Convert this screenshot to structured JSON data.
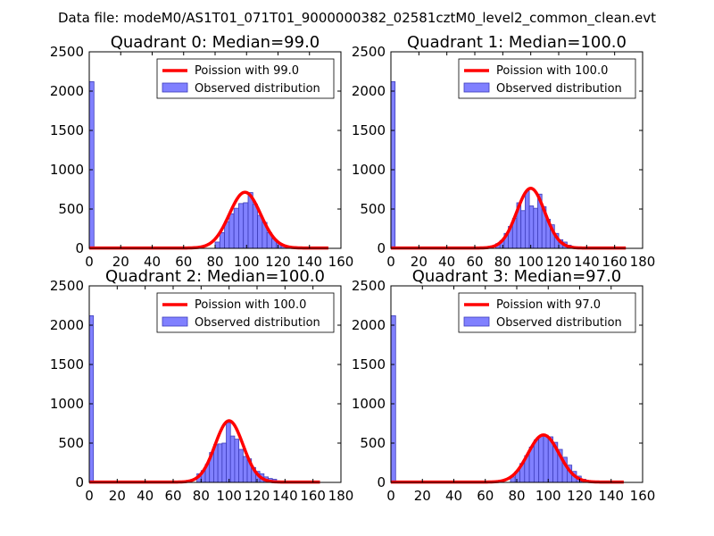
{
  "suptitle": "Data file: modeM0/AS1T01_071T01_9000000382_02581cztM0_level2_common_clean.evt",
  "colors": {
    "poisson_line": "#ff0000",
    "histogram_fill": "#8080ff",
    "histogram_edge": "#3d3dbb",
    "axes": "#000000",
    "legend_edge": "#000000"
  },
  "chart_data": [
    {
      "type": "bar",
      "title": "Quadrant 0: Median=99.0",
      "xlim": [
        0,
        160
      ],
      "ylim": [
        0,
        2500
      ],
      "xticks": [
        0,
        20,
        40,
        60,
        80,
        100,
        120,
        140,
        160
      ],
      "yticks": [
        0,
        500,
        1000,
        1500,
        2000,
        2500
      ],
      "legend_position": "top-right",
      "series": [
        {
          "name": "Poission with 99.0",
          "kind": "line",
          "mean": 99.0,
          "x_range": [
            0,
            152
          ],
          "peak": 710
        },
        {
          "name": "Observed distribution",
          "kind": "histogram",
          "bins": [
            {
              "x0": 0,
              "x1": 3,
              "count": 2120
            },
            {
              "x0": 80,
              "x1": 83,
              "count": 80
            },
            {
              "x0": 83,
              "x1": 86,
              "count": 200
            },
            {
              "x0": 86,
              "x1": 89,
              "count": 340
            },
            {
              "x0": 89,
              "x1": 92,
              "count": 440
            },
            {
              "x0": 92,
              "x1": 95,
              "count": 510
            },
            {
              "x0": 95,
              "x1": 98,
              "count": 570
            },
            {
              "x0": 98,
              "x1": 101,
              "count": 580
            },
            {
              "x0": 101,
              "x1": 104,
              "count": 710
            },
            {
              "x0": 104,
              "x1": 107,
              "count": 560
            },
            {
              "x0": 107,
              "x1": 110,
              "count": 420
            },
            {
              "x0": 110,
              "x1": 113,
              "count": 330
            },
            {
              "x0": 113,
              "x1": 116,
              "count": 200
            },
            {
              "x0": 116,
              "x1": 119,
              "count": 120
            },
            {
              "x0": 119,
              "x1": 122,
              "count": 70
            },
            {
              "x0": 122,
              "x1": 125,
              "count": 30
            }
          ]
        }
      ]
    },
    {
      "type": "bar",
      "title": "Quadrant 1: Median=100.0",
      "xlim": [
        0,
        180
      ],
      "ylim": [
        0,
        2500
      ],
      "xticks": [
        0,
        20,
        40,
        60,
        80,
        100,
        120,
        140,
        160,
        180
      ],
      "yticks": [
        0,
        500,
        1000,
        1500,
        2000,
        2500
      ],
      "legend_position": "top-right",
      "series": [
        {
          "name": "Poission with 100.0",
          "kind": "line",
          "mean": 100.0,
          "x_range": [
            0,
            168
          ],
          "peak": 760
        },
        {
          "name": "Observed distribution",
          "kind": "histogram",
          "bins": [
            {
              "x0": 0,
              "x1": 3,
              "count": 2120
            },
            {
              "x0": 75,
              "x1": 78,
              "count": 60
            },
            {
              "x0": 78,
              "x1": 81,
              "count": 100
            },
            {
              "x0": 81,
              "x1": 84,
              "count": 190
            },
            {
              "x0": 84,
              "x1": 87,
              "count": 280
            },
            {
              "x0": 87,
              "x1": 90,
              "count": 380
            },
            {
              "x0": 90,
              "x1": 93,
              "count": 580
            },
            {
              "x0": 93,
              "x1": 96,
              "count": 480
            },
            {
              "x0": 96,
              "x1": 99,
              "count": 730
            },
            {
              "x0": 99,
              "x1": 102,
              "count": 540
            },
            {
              "x0": 102,
              "x1": 105,
              "count": 510
            },
            {
              "x0": 105,
              "x1": 108,
              "count": 690
            },
            {
              "x0": 108,
              "x1": 111,
              "count": 530
            },
            {
              "x0": 111,
              "x1": 114,
              "count": 370
            },
            {
              "x0": 114,
              "x1": 117,
              "count": 300
            },
            {
              "x0": 117,
              "x1": 120,
              "count": 190
            },
            {
              "x0": 120,
              "x1": 123,
              "count": 110
            },
            {
              "x0": 123,
              "x1": 126,
              "count": 80
            },
            {
              "x0": 126,
              "x1": 129,
              "count": 40
            },
            {
              "x0": 129,
              "x1": 132,
              "count": 20
            }
          ]
        }
      ]
    },
    {
      "type": "bar",
      "title": "Quadrant 2: Median=100.0",
      "xlim": [
        0,
        180
      ],
      "ylim": [
        0,
        2500
      ],
      "xticks": [
        0,
        20,
        40,
        60,
        80,
        100,
        120,
        140,
        160,
        180
      ],
      "yticks": [
        0,
        500,
        1000,
        1500,
        2000,
        2500
      ],
      "legend_position": "top-right",
      "series": [
        {
          "name": "Poission with 100.0",
          "kind": "line",
          "mean": 100.0,
          "x_range": [
            0,
            165
          ],
          "peak": 780
        },
        {
          "name": "Observed distribution",
          "kind": "histogram",
          "bins": [
            {
              "x0": 0,
              "x1": 3,
              "count": 2120
            },
            {
              "x0": 77,
              "x1": 80,
              "count": 110
            },
            {
              "x0": 80,
              "x1": 83,
              "count": 150
            },
            {
              "x0": 83,
              "x1": 86,
              "count": 230
            },
            {
              "x0": 86,
              "x1": 89,
              "count": 380
            },
            {
              "x0": 89,
              "x1": 92,
              "count": 480
            },
            {
              "x0": 92,
              "x1": 95,
              "count": 490
            },
            {
              "x0": 95,
              "x1": 98,
              "count": 500
            },
            {
              "x0": 98,
              "x1": 101,
              "count": 760
            },
            {
              "x0": 101,
              "x1": 104,
              "count": 590
            },
            {
              "x0": 104,
              "x1": 107,
              "count": 550
            },
            {
              "x0": 107,
              "x1": 110,
              "count": 420
            },
            {
              "x0": 110,
              "x1": 113,
              "count": 330
            },
            {
              "x0": 113,
              "x1": 116,
              "count": 300
            },
            {
              "x0": 116,
              "x1": 119,
              "count": 190
            },
            {
              "x0": 119,
              "x1": 122,
              "count": 140
            },
            {
              "x0": 122,
              "x1": 125,
              "count": 110
            },
            {
              "x0": 125,
              "x1": 128,
              "count": 70
            },
            {
              "x0": 128,
              "x1": 131,
              "count": 50
            },
            {
              "x0": 131,
              "x1": 134,
              "count": 40
            }
          ]
        }
      ]
    },
    {
      "type": "bar",
      "title": "Quadrant 3: Median=97.0",
      "xlim": [
        0,
        160
      ],
      "ylim": [
        0,
        2500
      ],
      "xticks": [
        0,
        20,
        40,
        60,
        80,
        100,
        120,
        140,
        160
      ],
      "yticks": [
        0,
        500,
        1000,
        1500,
        2000,
        2500
      ],
      "legend_position": "top-right",
      "series": [
        {
          "name": "Poission with 97.0",
          "kind": "line",
          "mean": 97.0,
          "x_range": [
            0,
            148
          ],
          "peak": 600
        },
        {
          "name": "Observed distribution",
          "kind": "histogram",
          "bins": [
            {
              "x0": 0,
              "x1": 3,
              "count": 2120
            },
            {
              "x0": 76,
              "x1": 79,
              "count": 70
            },
            {
              "x0": 79,
              "x1": 82,
              "count": 140
            },
            {
              "x0": 82,
              "x1": 85,
              "count": 240
            },
            {
              "x0": 85,
              "x1": 88,
              "count": 340
            },
            {
              "x0": 88,
              "x1": 91,
              "count": 450
            },
            {
              "x0": 91,
              "x1": 94,
              "count": 540
            },
            {
              "x0": 94,
              "x1": 97,
              "count": 590
            },
            {
              "x0": 97,
              "x1": 100,
              "count": 600
            },
            {
              "x0": 100,
              "x1": 103,
              "count": 580
            },
            {
              "x0": 103,
              "x1": 106,
              "count": 510
            },
            {
              "x0": 106,
              "x1": 109,
              "count": 420
            },
            {
              "x0": 109,
              "x1": 112,
              "count": 320
            },
            {
              "x0": 112,
              "x1": 115,
              "count": 220
            },
            {
              "x0": 115,
              "x1": 118,
              "count": 140
            },
            {
              "x0": 118,
              "x1": 121,
              "count": 80
            },
            {
              "x0": 121,
              "x1": 124,
              "count": 40
            },
            {
              "x0": 124,
              "x1": 127,
              "count": 20
            }
          ]
        }
      ]
    }
  ]
}
